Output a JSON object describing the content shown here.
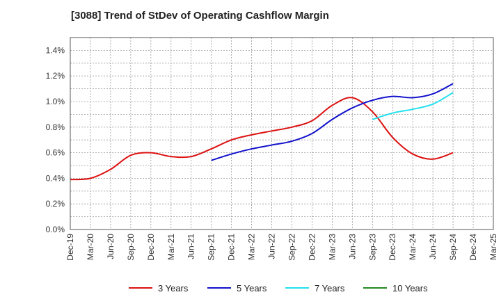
{
  "chart_data": {
    "type": "line",
    "title": "[3088]  Trend of StDev of Operating Cashflow Margin",
    "xlabel": "",
    "ylabel": "",
    "ylim": [
      0,
      1.5
    ],
    "yticks": [
      0,
      0.2,
      0.4,
      0.6,
      0.8,
      1.0,
      1.2,
      1.4
    ],
    "ytick_labels": [
      "0.0%",
      "0.2%",
      "0.4%",
      "0.6%",
      "0.8%",
      "1.0%",
      "1.2%",
      "1.4%"
    ],
    "xtick_labels": [
      "Dec-19",
      "Mar-20",
      "Jun-20",
      "Sep-20",
      "Dec-20",
      "Mar-21",
      "Jun-21",
      "Sep-21",
      "Dec-21",
      "Mar-22",
      "Jun-22",
      "Sep-22",
      "Dec-22",
      "Mar-23",
      "Jun-23",
      "Sep-23",
      "Dec-23",
      "Mar-24",
      "Jun-24",
      "Sep-24",
      "Dec-24",
      "Mar-25"
    ],
    "grid": true,
    "legend_position": "bottom",
    "series": [
      {
        "name": "3 Years",
        "color": "#dd1111",
        "x": [
          "Dec-19",
          "Mar-20",
          "Jun-20",
          "Sep-20",
          "Dec-20",
          "Mar-21",
          "Jun-21",
          "Sep-21",
          "Dec-21",
          "Mar-22",
          "Jun-22",
          "Sep-22",
          "Dec-22",
          "Mar-23",
          "Jun-23",
          "Sep-23",
          "Dec-23",
          "Mar-24",
          "Jun-24",
          "Sep-24"
        ],
        "values": [
          0.39,
          0.4,
          0.47,
          0.58,
          0.6,
          0.57,
          0.57,
          0.63,
          0.7,
          0.74,
          0.77,
          0.8,
          0.85,
          0.97,
          1.03,
          0.92,
          0.72,
          0.59,
          0.55,
          0.6
        ]
      },
      {
        "name": "5 Years",
        "color": "#1111cc",
        "x": [
          "Sep-21",
          "Dec-21",
          "Mar-22",
          "Jun-22",
          "Sep-22",
          "Dec-22",
          "Mar-23",
          "Jun-23",
          "Sep-23",
          "Dec-23",
          "Mar-24",
          "Jun-24",
          "Sep-24"
        ],
        "values": [
          0.54,
          0.59,
          0.63,
          0.66,
          0.69,
          0.75,
          0.86,
          0.95,
          1.01,
          1.04,
          1.03,
          1.06,
          1.14
        ]
      },
      {
        "name": "7 Years",
        "color": "#22e0ee",
        "x": [
          "Sep-23",
          "Dec-23",
          "Mar-24",
          "Jun-24",
          "Sep-24"
        ],
        "values": [
          0.86,
          0.91,
          0.94,
          0.98,
          1.07
        ]
      },
      {
        "name": "10 Years",
        "color": "#228822",
        "x": [],
        "values": []
      }
    ]
  }
}
